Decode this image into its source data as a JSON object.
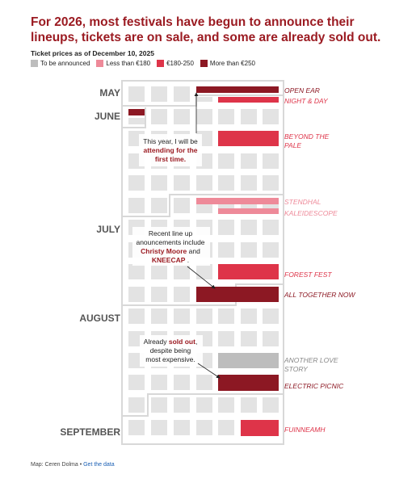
{
  "header": {
    "title": "For 2026, most festivals have begun to announce their lineups, tickets are on sale, and some are already sold out.",
    "subtitle": "Ticket prices as of December 10, 2025"
  },
  "legend": [
    {
      "label": "To be announced",
      "color": "#bdbdbd"
    },
    {
      "label": "Less than €180",
      "color": "#ee8a99"
    },
    {
      "label": "€180-250",
      "color": "#de3449"
    },
    {
      "label": "More than €250",
      "color": "#8c1823"
    }
  ],
  "chart_data": {
    "type": "calendar",
    "months": [
      "MAY",
      "JUNE",
      "JULY",
      "AUGUST",
      "SEPTEMBER"
    ],
    "festivals": [
      {
        "name": "OPEN EAR",
        "price_category": "More than €250",
        "color": "#8c1823"
      },
      {
        "name": "NIGHT & DAY",
        "price_category": "€180-250",
        "color": "#de3449"
      },
      {
        "name": "BEYOND THE PALE",
        "price_category": "€180-250",
        "color": "#de3449"
      },
      {
        "name": "STENDHAL",
        "price_category": "Less than €180",
        "color": "#ee8a99"
      },
      {
        "name": "KALEIDESCOPE",
        "price_category": "Less than €180",
        "color": "#ee8a99"
      },
      {
        "name": "FOREST FEST",
        "price_category": "€180-250",
        "color": "#de3449"
      },
      {
        "name": "ALL TOGETHER NOW",
        "price_category": "More than €250",
        "color": "#8c1823"
      },
      {
        "name": "ANOTHER LOVE STORY",
        "price_category": "To be announced",
        "color": "#bdbdbd"
      },
      {
        "name": "ELECTRIC PICNIC",
        "price_category": "More than €250",
        "color": "#8c1823"
      },
      {
        "name": "FUINNEAMH",
        "price_category": "€180-250",
        "color": "#de3449"
      }
    ],
    "annotations": [
      {
        "lines": [
          [
            "This year, I will be"
          ],
          [
            "attending for the",
            "b"
          ],
          [
            "first time.",
            "b"
          ]
        ]
      },
      {
        "lines": [
          [
            "Recent line up"
          ],
          [
            "anouncements include"
          ],
          [
            "Christy Moore",
            "b",
            " and"
          ],
          [
            "KNEECAP",
            "b",
            " ."
          ]
        ]
      },
      {
        "lines": [
          [
            "Already ",
            "",
            "sold out",
            "b",
            ","
          ],
          [
            "despite being"
          ],
          [
            "most expensive."
          ]
        ]
      }
    ]
  },
  "footer": {
    "source": "Map: Ceren Dolma",
    "link": "Get the data"
  }
}
